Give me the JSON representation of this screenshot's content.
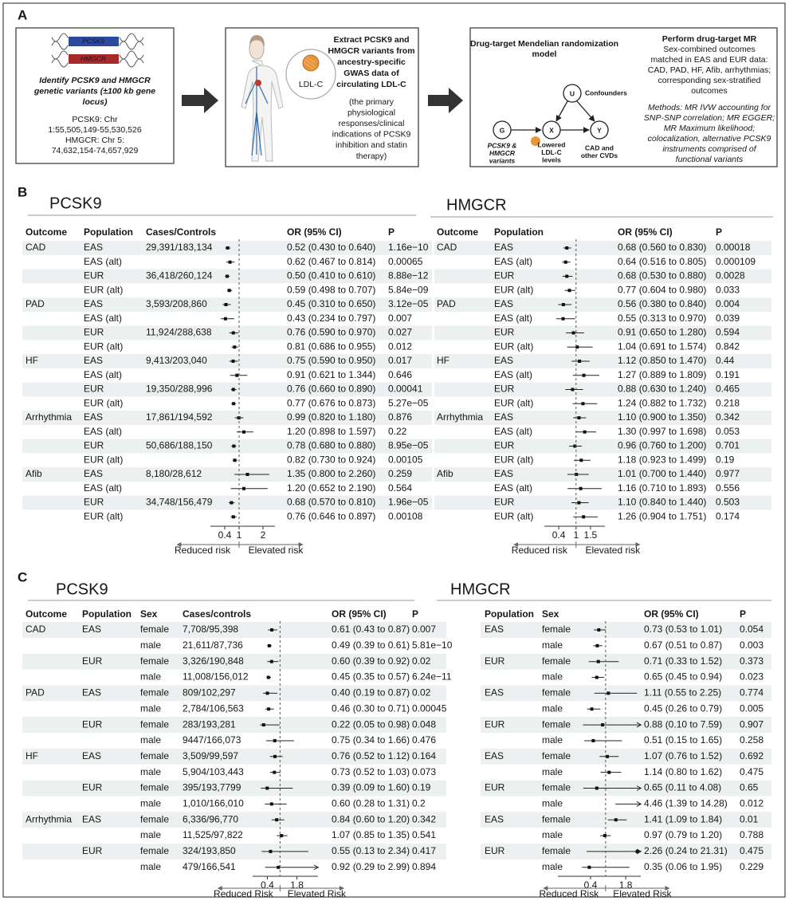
{
  "panel_a": {
    "label": "A",
    "genes": {
      "dna_labels": [
        "PCSK9",
        "HMGCR"
      ],
      "heading": [
        "Identify PCSK9 and HMGCR",
        "genetic variants (±100 kb gene",
        "locus)"
      ],
      "loci": [
        "PCSK9: Chr",
        "1:55,505,149-55,530,526",
        "HMGCR: Chr 5:",
        "74,632,154-74,657,929"
      ]
    },
    "extract": {
      "ldl_label": "LDL-C",
      "heading": [
        "Extract PCSK9 and",
        "HMGCR variants from",
        "ancestry-specific",
        "GWAS data of",
        "circulating LDL-C"
      ],
      "note": [
        "(the primary",
        "physiological",
        "responses/clinical",
        "indications of PCSK9",
        "inhibition and statin",
        "therapy)"
      ]
    },
    "model": {
      "title": [
        "Drug-target Mendelian randomization",
        "model"
      ],
      "nodes": [
        "G",
        "X",
        "Y",
        "U"
      ],
      "confounders": "Confounders",
      "exposure": [
        "PCSK9 &",
        "HMGCR",
        "variants"
      ],
      "mediator": [
        "Lowered",
        "LDL-C",
        "levels"
      ],
      "outcome": [
        "CAD and",
        "other CVDs"
      ],
      "mr_title": "Perform drug-target MR",
      "outcomes": [
        "Sex-combined outcomes",
        "matched in EAS and EUR data:",
        "CAD, PAD, HF, Afib, arrhythmias;",
        "corresponding sex-stratified",
        "outcomes"
      ],
      "methods": [
        "Methods: MR IVW accounting for",
        "SNP-SNP correlation; MR EGGER;",
        "MR Maximum likelihood;",
        "colocalization, alternative PCSK9",
        "instruments comprised of",
        "functional variants"
      ]
    }
  },
  "panel_b": {
    "label": "B",
    "pcsk9": {
      "title": "PCSK9",
      "headers": [
        "Outcome",
        "Population",
        "Cases/Controls",
        "OR (95% CI)",
        "P"
      ],
      "xlim": [
        -0.2,
        2.5
      ],
      "xticks": [
        0.4,
        1,
        2
      ],
      "reduced": "Reduced risk",
      "elevated": "Elevated risk",
      "rows": [
        {
          "outcome": "CAD",
          "population": "EAS",
          "cases": "29,391/183,134",
          "or": 0.52,
          "lower": 0.43,
          "upper": 0.64,
          "label": "0.52 (0.430 to 0.640)",
          "p": "1.16e−10"
        },
        {
          "population": "EAS (alt)",
          "or": 0.62,
          "lower": 0.467,
          "upper": 0.814,
          "label": "0.62 (0.467 to 0.814)",
          "p": "0.00065"
        },
        {
          "population": "EUR",
          "cases": "36,418/260,124",
          "or": 0.5,
          "lower": 0.41,
          "upper": 0.61,
          "label": "0.50 (0.410 to 0.610)",
          "p": "8.88e−12"
        },
        {
          "population": "EUR (alt)",
          "or": 0.59,
          "lower": 0.498,
          "upper": 0.707,
          "label": "0.59 (0.498 to 0.707)",
          "p": "5.84e−09"
        },
        {
          "outcome": "PAD",
          "population": "EAS",
          "cases": "3,593/208,860",
          "or": 0.45,
          "lower": 0.31,
          "upper": 0.65,
          "label": "0.45 (0.310 to 0.650)",
          "p": "3.12e−05"
        },
        {
          "population": "EAS (alt)",
          "or": 0.43,
          "lower": 0.234,
          "upper": 0.797,
          "label": "0.43 (0.234 to 0.797)",
          "p": "0.007"
        },
        {
          "population": "EUR",
          "cases": "11,924/288,638",
          "or": 0.76,
          "lower": 0.59,
          "upper": 0.97,
          "label": "0.76 (0.590 to 0.970)",
          "p": "0.027"
        },
        {
          "population": "EUR (alt)",
          "or": 0.81,
          "lower": 0.686,
          "upper": 0.955,
          "label": "0.81 (0.686 to 0.955)",
          "p": "0.012"
        },
        {
          "outcome": "HF",
          "population": "EAS",
          "cases": "9,413/203,040",
          "or": 0.75,
          "lower": 0.59,
          "upper": 0.95,
          "label": "0.75 (0.590 to 0.950)",
          "p": "0.017"
        },
        {
          "population": "EAS (alt)",
          "or": 0.91,
          "lower": 0.621,
          "upper": 1.344,
          "label": "0.91 (0.621 to 1.344)",
          "p": "0.646"
        },
        {
          "population": "EUR",
          "cases": "19,350/288,996",
          "or": 0.76,
          "lower": 0.66,
          "upper": 0.89,
          "label": "0.76 (0.660 to 0.890)",
          "p": "0.00041"
        },
        {
          "population": "EUR (alt)",
          "or": 0.77,
          "lower": 0.676,
          "upper": 0.873,
          "label": "0.77 (0.676 to 0.873)",
          "p": "5.27e−05"
        },
        {
          "outcome": "Arrhythmia",
          "population": "EAS",
          "cases": "17,861/194,592",
          "or": 0.99,
          "lower": 0.82,
          "upper": 1.18,
          "label": "0.99 (0.820 to 1.180)",
          "p": "0.876"
        },
        {
          "population": "EAS (alt)",
          "or": 1.2,
          "lower": 0.898,
          "upper": 1.597,
          "label": "1.20 (0.898 to 1.597)",
          "p": "0.22"
        },
        {
          "population": "EUR",
          "cases": "50,686/188,150",
          "or": 0.78,
          "lower": 0.68,
          "upper": 0.88,
          "label": "0.78 (0.680 to 0.880)",
          "p": "8.95e−05"
        },
        {
          "population": "EUR (alt)",
          "or": 0.82,
          "lower": 0.73,
          "upper": 0.924,
          "label": "0.82 (0.730 to 0.924)",
          "p": "0.00105"
        },
        {
          "outcome": "Afib",
          "population": "EAS",
          "cases": "8,180/28,612",
          "or": 1.35,
          "lower": 0.8,
          "upper": 2.26,
          "label": "1.35 (0.800 to 2.260)",
          "p": "0.259"
        },
        {
          "population": "EAS (alt)",
          "or": 1.2,
          "lower": 0.652,
          "upper": 2.19,
          "label": "1.20 (0.652 to 2.190)",
          "p": "0.564"
        },
        {
          "population": "EUR",
          "cases": "34,748/156,479",
          "or": 0.68,
          "lower": 0.57,
          "upper": 0.81,
          "label": "0.68 (0.570 to 0.810)",
          "p": "1.96e−05"
        },
        {
          "population": "EUR (alt)",
          "or": 0.76,
          "lower": 0.646,
          "upper": 0.897,
          "label": "0.76 (0.646 to 0.897)",
          "p": "0.00108"
        }
      ]
    },
    "hmgcr": {
      "title": "HMGCR",
      "headers": [
        "Outcome",
        "Population",
        "OR (95% CI)",
        "P"
      ],
      "xlim": [
        -0.1,
        2.0
      ],
      "xticks": [
        0.4,
        1,
        1.5
      ],
      "reduced": "Reduced risk",
      "elevated": "Elevated risk",
      "rows": [
        {
          "outcome": "CAD",
          "population": "EAS",
          "or": 0.68,
          "lower": 0.56,
          "upper": 0.83,
          "label": "0.68 (0.560 to 0.830)",
          "p": "0.00018"
        },
        {
          "population": "EAS (alt)",
          "or": 0.64,
          "lower": 0.516,
          "upper": 0.805,
          "label": "0.64 (0.516 to 0.805)",
          "p": "0.000109"
        },
        {
          "population": "EUR",
          "or": 0.68,
          "lower": 0.53,
          "upper": 0.88,
          "label": "0.68 (0.530 to 0.880)",
          "p": "0.0028"
        },
        {
          "population": "EUR (alt)",
          "or": 0.77,
          "lower": 0.604,
          "upper": 0.98,
          "label": "0.77 (0.604 to 0.980)",
          "p": "0.033"
        },
        {
          "outcome": "PAD",
          "population": "EAS",
          "or": 0.56,
          "lower": 0.38,
          "upper": 0.84,
          "label": "0.56 (0.380 to 0.840)",
          "p": "0.004"
        },
        {
          "population": "EAS (alt)",
          "or": 0.55,
          "lower": 0.313,
          "upper": 0.97,
          "label": "0.55 (0.313 to 0.970)",
          "p": "0.039"
        },
        {
          "population": "EUR",
          "or": 0.91,
          "lower": 0.65,
          "upper": 1.28,
          "label": "0.91 (0.650 to 1.280)",
          "p": "0.594"
        },
        {
          "population": "EUR (alt)",
          "or": 1.04,
          "lower": 0.691,
          "upper": 1.574,
          "label": "1.04 (0.691 to 1.574)",
          "p": "0.842"
        },
        {
          "outcome": "HF",
          "population": "EAS",
          "or": 1.12,
          "lower": 0.85,
          "upper": 1.47,
          "label": "1.12 (0.850 to 1.470)",
          "p": "0.44"
        },
        {
          "population": "EAS (alt)",
          "or": 1.27,
          "lower": 0.889,
          "upper": 1.809,
          "label": "1.27 (0.889 to 1.809)",
          "p": "0.191"
        },
        {
          "population": "EUR",
          "or": 0.88,
          "lower": 0.63,
          "upper": 1.24,
          "label": "0.88 (0.630 to 1.240)",
          "p": "0.465"
        },
        {
          "population": "EUR (alt)",
          "or": 1.24,
          "lower": 0.882,
          "upper": 1.732,
          "label": "1.24 (0.882 to 1.732)",
          "p": "0.218"
        },
        {
          "outcome": "Arrhythmia",
          "population": "EAS",
          "or": 1.1,
          "lower": 0.9,
          "upper": 1.35,
          "label": "1.10 (0.900 to 1.350)",
          "p": "0.342"
        },
        {
          "population": "EAS (alt)",
          "or": 1.3,
          "lower": 0.997,
          "upper": 1.698,
          "label": "1.30 (0.997 to 1.698)",
          "p": "0.053"
        },
        {
          "population": "EUR",
          "or": 0.96,
          "lower": 0.76,
          "upper": 1.2,
          "label": "0.96 (0.760 to 1.200)",
          "p": "0.701"
        },
        {
          "population": "EUR (alt)",
          "or": 1.18,
          "lower": 0.923,
          "upper": 1.499,
          "label": "1.18 (0.923 to 1.499)",
          "p": "0.19"
        },
        {
          "outcome": "Afib",
          "population": "EAS",
          "or": 1.01,
          "lower": 0.7,
          "upper": 1.44,
          "label": "1.01 (0.700 to 1.440)",
          "p": "0.977"
        },
        {
          "population": "EAS (alt)",
          "or": 1.16,
          "lower": 0.71,
          "upper": 1.893,
          "label": "1.16 (0.710 to 1.893)",
          "p": "0.556"
        },
        {
          "population": "EUR",
          "or": 1.1,
          "lower": 0.84,
          "upper": 1.44,
          "label": "1.10 (0.840 to 1.440)",
          "p": "0.503"
        },
        {
          "population": "EUR (alt)",
          "or": 1.26,
          "lower": 0.904,
          "upper": 1.751,
          "label": "1.26 (0.904 to 1.751)",
          "p": "0.174"
        }
      ]
    }
  },
  "panel_c": {
    "label": "C",
    "pcsk9": {
      "title": "PCSK9",
      "headers": [
        "Outcome",
        "Population",
        "Sex",
        "Cases/controls",
        "OR (95% CI)",
        "P"
      ],
      "xlim": [
        -0.3,
        2.8
      ],
      "xticks": [
        0.4,
        1.8
      ],
      "reduced": "Reduced Risk",
      "elevated": "Elevated Risk",
      "rows": [
        {
          "outcome": "CAD",
          "population": "EAS",
          "sex": "female",
          "cases": "7,708/95,398",
          "or": 0.61,
          "lower": 0.43,
          "upper": 0.87,
          "label": "0.61 (0.43 to 0.87)",
          "p": "0.007"
        },
        {
          "sex": "male",
          "cases": "21,611/87,736",
          "or": 0.49,
          "lower": 0.39,
          "upper": 0.61,
          "label": "0.49 (0.39 to 0.61)",
          "p": "5.81e−10"
        },
        {
          "population": "EUR",
          "sex": "female",
          "cases": "3,326/190,848",
          "or": 0.6,
          "lower": 0.39,
          "upper": 0.92,
          "label": "0.60 (0.39 to 0.92)",
          "p": "0.02"
        },
        {
          "sex": "male",
          "cases": "11,008/156,012",
          "or": 0.45,
          "lower": 0.35,
          "upper": 0.57,
          "label": "0.45 (0.35 to 0.57)",
          "p": "6.24e−11"
        },
        {
          "outcome": "PAD",
          "population": "EAS",
          "sex": "female",
          "cases": "809/102,297",
          "or": 0.4,
          "lower": 0.19,
          "upper": 0.87,
          "label": "0.40 (0.19 to 0.87)",
          "p": "0.02"
        },
        {
          "sex": "male",
          "cases": "2,784/106,563",
          "or": 0.46,
          "lower": 0.3,
          "upper": 0.71,
          "label": "0.46 (0.30 to 0.71)",
          "p": "0.00045"
        },
        {
          "population": "EUR",
          "sex": "female",
          "cases": "283/193,281",
          "or": 0.22,
          "lower": 0.05,
          "upper": 0.98,
          "label": "0.22 (0.05 to 0.98)",
          "p": "0.048"
        },
        {
          "sex": "male",
          "cases": "9447/166,073",
          "or": 0.75,
          "lower": 0.34,
          "upper": 1.66,
          "label": "0.75 (0.34 to 1.66)",
          "p": "0.476"
        },
        {
          "outcome": "HF",
          "population": "EAS",
          "sex": "female",
          "cases": "3,509/99,597",
          "or": 0.76,
          "lower": 0.52,
          "upper": 1.12,
          "label": "0.76 (0.52 to 1.12)",
          "p": "0.164"
        },
        {
          "sex": "male",
          "cases": "5,904/103,443",
          "or": 0.73,
          "lower": 0.52,
          "upper": 1.03,
          "label": "0.73 (0.52 to 1.03)",
          "p": "0.073"
        },
        {
          "population": "EUR",
          "sex": "female",
          "cases": "395/193,7799",
          "or": 0.39,
          "lower": 0.09,
          "upper": 1.6,
          "label": "0.39 (0.09 to 1.60)",
          "p": "0.19"
        },
        {
          "sex": "male",
          "cases": "1,010/166,010",
          "or": 0.6,
          "lower": 0.28,
          "upper": 1.31,
          "label": "0.60 (0.28 to 1.31)",
          "p": "0.2"
        },
        {
          "outcome": "Arrhythmia",
          "population": "EAS",
          "sex": "female",
          "cases": "6,336/96,770",
          "or": 0.84,
          "lower": 0.6,
          "upper": 1.2,
          "label": "0.84 (0.60 to 1.20)",
          "p": "0.342"
        },
        {
          "sex": "male",
          "cases": "11,525/97,822",
          "or": 1.07,
          "lower": 0.85,
          "upper": 1.35,
          "label": "1.07 (0.85 to 1.35)",
          "p": "0.541"
        },
        {
          "population": "EUR",
          "sex": "female",
          "cases": "324/193,850",
          "or": 0.55,
          "lower": 0.13,
          "upper": 2.34,
          "label": "0.55 (0.13 to 2.34)",
          "p": "0.417"
        },
        {
          "sex": "male",
          "cases": "479/166,541",
          "or": 0.92,
          "lower": 0.29,
          "upper": 2.99,
          "label": "0.92 (0.29 to 2.99)",
          "p": "0.894"
        }
      ]
    },
    "hmgcr": {
      "title": "HMGCR",
      "headers": [
        "Population",
        "Sex",
        "OR (95% CI)",
        "P"
      ],
      "xlim": [
        -0.9,
        2.4
      ],
      "xticks": [
        0.4,
        1.8
      ],
      "reduced": "Reduced Risk",
      "elevated": "Elevated Risk",
      "rows": [
        {
          "population": "EAS",
          "sex": "female",
          "or": 0.73,
          "lower": 0.53,
          "upper": 1.01,
          "label": "0.73 (0.53 to 1.01)",
          "p": "0.054"
        },
        {
          "sex": "male",
          "or": 0.67,
          "lower": 0.51,
          "upper": 0.87,
          "label": "0.67 (0.51 to 0.87)",
          "p": "0.003"
        },
        {
          "population": "EUR",
          "sex": "female",
          "or": 0.71,
          "lower": 0.33,
          "upper": 1.52,
          "label": "0.71 (0.33 to 1.52)",
          "p": "0.373"
        },
        {
          "sex": "male",
          "or": 0.65,
          "lower": 0.45,
          "upper": 0.94,
          "label": "0.65 (0.45 to 0.94)",
          "p": "0.023"
        },
        {
          "population": "EAS",
          "sex": "female",
          "or": 1.11,
          "lower": 0.55,
          "upper": 2.25,
          "label": "1.11 (0.55 to 2.25)",
          "p": "0.774"
        },
        {
          "sex": "male",
          "or": 0.45,
          "lower": 0.26,
          "upper": 0.79,
          "label": "0.45 (0.26 to 0.79)",
          "p": "0.005"
        },
        {
          "population": "EUR",
          "sex": "female",
          "or": 0.88,
          "lower": 0.1,
          "upper": 7.59,
          "label": "0.88 (0.10 to 7.59)",
          "p": "0.907"
        },
        {
          "sex": "male",
          "or": 0.51,
          "lower": 0.15,
          "upper": 1.65,
          "label": "0.51 (0.15 to 1.65)",
          "p": "0.258"
        },
        {
          "population": "EAS",
          "sex": "female",
          "or": 1.07,
          "lower": 0.76,
          "upper": 1.52,
          "label": "1.07 (0.76 to 1.52)",
          "p": "0.692"
        },
        {
          "sex": "male",
          "or": 1.14,
          "lower": 0.8,
          "upper": 1.62,
          "label": "1.14 (0.80 to 1.62)",
          "p": "0.475"
        },
        {
          "population": "EUR",
          "sex": "female",
          "or": 0.65,
          "lower": 0.11,
          "upper": 4.08,
          "label": "0.65 (0.11 to 4.08)",
          "p": "0.65"
        },
        {
          "sex": "male",
          "or": 4.46,
          "lower": 1.39,
          "upper": 14.28,
          "label": "4.46 (1.39 to 14.28)",
          "p": "0.012"
        },
        {
          "population": "EAS",
          "sex": "female",
          "or": 1.41,
          "lower": 1.09,
          "upper": 1.84,
          "label": "1.41 (1.09 to 1.84)",
          "p": "0.01"
        },
        {
          "sex": "male",
          "or": 0.97,
          "lower": 0.79,
          "upper": 1.2,
          "label": "0.97 (0.79 to 1.20)",
          "p": "0.788"
        },
        {
          "population": "EUR",
          "sex": "female",
          "or": 2.26,
          "lower": 0.24,
          "upper": 21.31,
          "label": "2.26 (0.24 to 21.31)",
          "p": "0.475"
        },
        {
          "sex": "male",
          "or": 0.35,
          "lower": 0.06,
          "upper": 1.95,
          "label": "0.35 (0.06 to 1.95)",
          "p": "0.229"
        }
      ]
    }
  }
}
